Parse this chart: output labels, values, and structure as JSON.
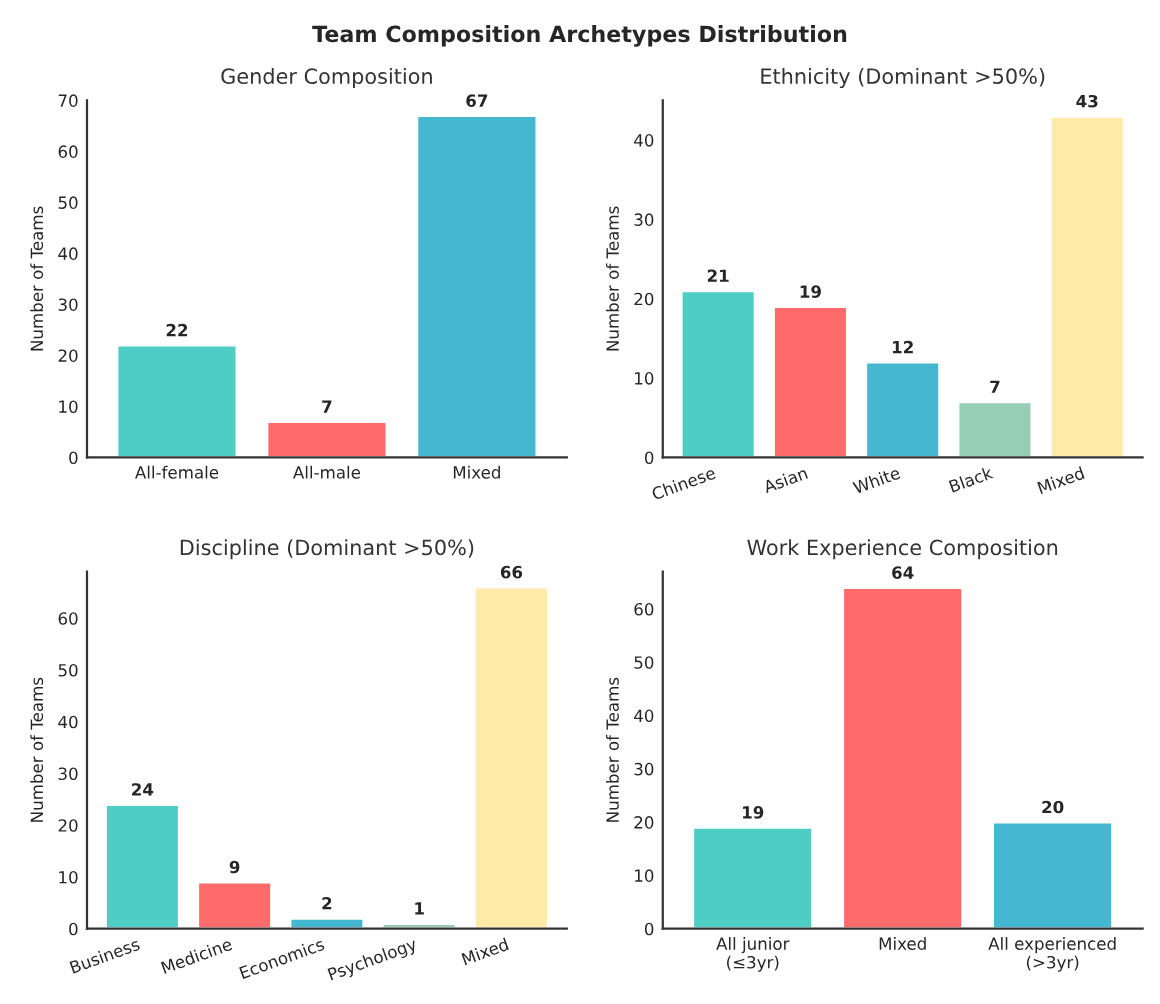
{
  "chart_data": [
    {
      "type": "bar",
      "title": "Gender Composition",
      "ylabel": "Number of Teams",
      "annotations": [
        "Team Composition Archetypes Distribution"
      ],
      "categories": [
        "All-female",
        "All-male",
        "Mixed"
      ],
      "values": [
        22,
        7,
        67
      ],
      "colors": [
        "#4ecdc4",
        "#ff6b6b",
        "#45b7d1"
      ],
      "ylim": [
        0,
        70
      ],
      "yticks": [
        0,
        10,
        20,
        30,
        40,
        50,
        60,
        70
      ],
      "data_labels": true,
      "grid": false,
      "legend": false
    },
    {
      "type": "bar",
      "title": "Ethnicity (Dominant >50%)",
      "ylabel": "Number of Teams",
      "categories": [
        "Chinese",
        "Asian",
        "White",
        "Black",
        "Mixed"
      ],
      "values": [
        21,
        19,
        12,
        7,
        43
      ],
      "colors": [
        "#4ecdc4",
        "#ff6b6b",
        "#45b7d1",
        "#96ceb4",
        "#ffeaa7"
      ],
      "ylim": [
        0,
        45
      ],
      "yticks": [
        0,
        10,
        20,
        30,
        40
      ],
      "data_labels": true,
      "grid": false,
      "legend": false
    },
    {
      "type": "bar",
      "title": "Discipline (Dominant >50%)",
      "ylabel": "Number of Teams",
      "categories": [
        "Business",
        "Medicine",
        "Economics",
        "Psychology",
        "Mixed"
      ],
      "values": [
        24,
        9,
        2,
        1,
        66
      ],
      "colors": [
        "#4ecdc4",
        "#ff6b6b",
        "#45b7d1",
        "#96ceb4",
        "#ffeaa7"
      ],
      "ylim": [
        0,
        69
      ],
      "yticks": [
        0,
        10,
        20,
        30,
        40,
        50,
        60
      ],
      "data_labels": true,
      "grid": false,
      "legend": false
    },
    {
      "type": "bar",
      "title": "Work Experience Composition",
      "ylabel": "Number of Teams",
      "categories": [
        "All junior\n(≤3yr)",
        "Mixed",
        "All experienced\n(>3yr)"
      ],
      "values": [
        19,
        64,
        20
      ],
      "colors": [
        "#4ecdc4",
        "#ff6b6b",
        "#45b7d1"
      ],
      "ylim": [
        0,
        67
      ],
      "yticks": [
        0,
        10,
        20,
        30,
        40,
        50,
        60
      ],
      "data_labels": true,
      "grid": false,
      "legend": false
    }
  ]
}
